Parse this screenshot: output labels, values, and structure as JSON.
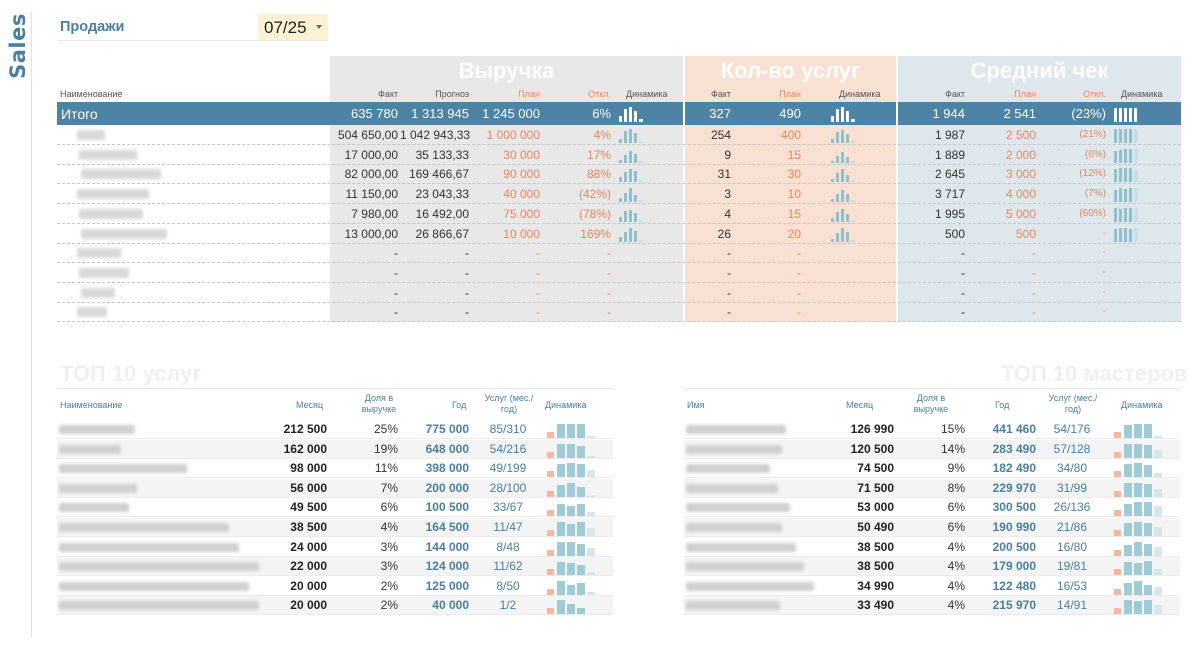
{
  "app": {
    "side_label": "Sales",
    "title": "Продажи",
    "period": "07/25"
  },
  "sections": {
    "revenue": "Выручка",
    "count": "Кол-во услуг",
    "avg": "Средний чек"
  },
  "headers": {
    "name": "Наименование",
    "rev": [
      "Факт",
      "Прогноз",
      "План",
      "Откл.",
      "Динамика"
    ],
    "cnt": [
      "Факт",
      "План",
      "Динамика"
    ],
    "avg": [
      "Факт",
      "План",
      "Откл.",
      "Динамика"
    ]
  },
  "total": {
    "label": "Итого",
    "rev_fact": "635 780",
    "rev_forecast": "1 313 945",
    "rev_plan": "1 245 000",
    "rev_dev": "6%",
    "cnt_fact": "327",
    "cnt_plan": "490",
    "avg_fact": "1 944",
    "avg_plan": "2 541",
    "avg_dev": "(23%)"
  },
  "rows": [
    {
      "rev_fact": "504 650,00",
      "rev_forecast": "1 042 943,33",
      "rev_plan": "1 000 000",
      "rev_dev": "4%",
      "cnt_fact": "254",
      "cnt_plan": "400",
      "avg_fact": "1 987",
      "avg_plan": "2 500",
      "avg_dev": "(21%)"
    },
    {
      "rev_fact": "17 000,00",
      "rev_forecast": "35 133,33",
      "rev_plan": "30 000",
      "rev_dev": "17%",
      "cnt_fact": "9",
      "cnt_plan": "15",
      "avg_fact": "1 889",
      "avg_plan": "2 000",
      "avg_dev": "(6%)"
    },
    {
      "rev_fact": "82 000,00",
      "rev_forecast": "169 466,67",
      "rev_plan": "90 000",
      "rev_dev": "88%",
      "cnt_fact": "31",
      "cnt_plan": "30",
      "avg_fact": "2 645",
      "avg_plan": "3 000",
      "avg_dev": "(12%)"
    },
    {
      "rev_fact": "11 150,00",
      "rev_forecast": "23 043,33",
      "rev_plan": "40 000",
      "rev_dev": "(42%)",
      "cnt_fact": "3",
      "cnt_plan": "10",
      "avg_fact": "3 717",
      "avg_plan": "4 000",
      "avg_dev": "(7%)"
    },
    {
      "rev_fact": "7 980,00",
      "rev_forecast": "16 492,00",
      "rev_plan": "75 000",
      "rev_dev": "(78%)",
      "cnt_fact": "4",
      "cnt_plan": "15",
      "avg_fact": "1 995",
      "avg_plan": "5 000",
      "avg_dev": "(60%)"
    },
    {
      "rev_fact": "13 000,00",
      "rev_forecast": "26 866,67",
      "rev_plan": "10 000",
      "rev_dev": "169%",
      "cnt_fact": "26",
      "cnt_plan": "20",
      "avg_fact": "500",
      "avg_plan": "500",
      "avg_dev": "-"
    },
    {
      "rev_fact": "-",
      "rev_forecast": "-",
      "rev_plan": "-",
      "rev_dev": "-",
      "cnt_fact": "-",
      "cnt_plan": "-",
      "avg_fact": "-",
      "avg_plan": "-",
      "avg_dev": "-"
    },
    {
      "rev_fact": "-",
      "rev_forecast": "-",
      "rev_plan": "-",
      "rev_dev": "-",
      "cnt_fact": "-",
      "cnt_plan": "-",
      "avg_fact": "-",
      "avg_plan": "-",
      "avg_dev": "-"
    },
    {
      "rev_fact": "-",
      "rev_forecast": "-",
      "rev_plan": "-",
      "rev_dev": "-",
      "cnt_fact": "-",
      "cnt_plan": "-",
      "avg_fact": "-",
      "avg_plan": "-",
      "avg_dev": "-"
    },
    {
      "rev_fact": "-",
      "rev_forecast": "-",
      "rev_plan": "-",
      "rev_dev": "-",
      "cnt_fact": "-",
      "cnt_plan": "-",
      "avg_fact": "-",
      "avg_plan": "-",
      "avg_dev": "-"
    }
  ],
  "last_row": {
    "rev_dev": "-",
    "avg_fact": "-"
  },
  "top_services": {
    "title": "ТОП 10 услуг",
    "headers": [
      "Наименование",
      "Месяц",
      "Доля в выручке",
      "Год",
      "Услуг (мес./год)",
      "Динамика"
    ],
    "rows": [
      {
        "month": "212 500",
        "share": "25%",
        "year": "775 000",
        "services": "85/310"
      },
      {
        "month": "162 000",
        "share": "19%",
        "year": "648 000",
        "services": "54/216"
      },
      {
        "month": "98 000",
        "share": "11%",
        "year": "398 000",
        "services": "49/199"
      },
      {
        "month": "56 000",
        "share": "7%",
        "year": "200 000",
        "services": "28/100"
      },
      {
        "month": "49 500",
        "share": "6%",
        "year": "100 500",
        "services": "33/67"
      },
      {
        "month": "38 500",
        "share": "4%",
        "year": "164 500",
        "services": "11/47"
      },
      {
        "month": "24 000",
        "share": "3%",
        "year": "144 000",
        "services": "8/48"
      },
      {
        "month": "22 000",
        "share": "3%",
        "year": "124 000",
        "services": "11/62"
      },
      {
        "month": "20 000",
        "share": "2%",
        "year": "125 000",
        "services": "8/50"
      },
      {
        "month": "20 000",
        "share": "2%",
        "year": "40 000",
        "services": "1/2"
      }
    ]
  },
  "top_masters": {
    "title": "ТОП 10 мастеров",
    "headers": [
      "Имя",
      "Месяц",
      "Доля в выручке",
      "Год",
      "Услуг (мес./год)",
      "Динамика"
    ],
    "rows": [
      {
        "month": "126 990",
        "share": "15%",
        "year": "441 460",
        "services": "54/176"
      },
      {
        "month": "120 500",
        "share": "14%",
        "year": "283 490",
        "services": "57/128"
      },
      {
        "month": "74 500",
        "share": "9%",
        "year": "182 490",
        "services": "34/80"
      },
      {
        "month": "71 500",
        "share": "8%",
        "year": "229 970",
        "services": "31/99"
      },
      {
        "month": "53 000",
        "share": "6%",
        "year": "300 500",
        "services": "26/136"
      },
      {
        "month": "50 490",
        "share": "6%",
        "year": "190 990",
        "services": "21/86"
      },
      {
        "month": "38 500",
        "share": "4%",
        "year": "200 500",
        "services": "16/80"
      },
      {
        "month": "38 500",
        "share": "4%",
        "year": "179 000",
        "services": "19/81"
      },
      {
        "month": "34 990",
        "share": "4%",
        "year": "122 480",
        "services": "16/53"
      },
      {
        "month": "33 490",
        "share": "4%",
        "year": "215 970",
        "services": "14/91"
      }
    ]
  },
  "colors": {
    "accent": "#4d84a6",
    "orange": "#e9875e",
    "spark": "#8fc0cc"
  }
}
